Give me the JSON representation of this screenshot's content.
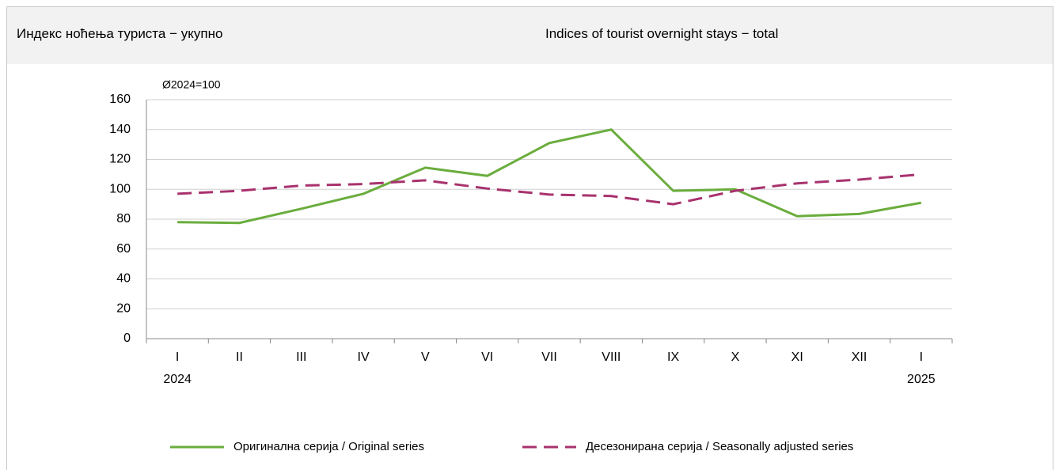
{
  "header": {
    "title_local": "Индекс ноћења туриста − укупно",
    "title_en": "Indices of tourist overnight stays − total"
  },
  "chart_data": {
    "type": "line",
    "y_unit_label": "Ø2024=100",
    "categories": [
      "I",
      "II",
      "III",
      "IV",
      "V",
      "VI",
      "VII",
      "VIII",
      "IX",
      "X",
      "XI",
      "XII",
      "I"
    ],
    "category_years": [
      "2024",
      null,
      null,
      null,
      null,
      null,
      null,
      null,
      null,
      null,
      null,
      null,
      "2025"
    ],
    "series": [
      {
        "name": "Оригинална серија / Original series",
        "color": "#6aad3d",
        "dashed": false,
        "values": [
          78,
          77.5,
          87,
          97,
          114.5,
          109,
          131,
          140,
          99,
          100,
          82,
          83.5,
          91
        ]
      },
      {
        "name": "Десезонирана серија / Seasonally adjusted series",
        "color": "#a8326e",
        "dashed": true,
        "values": [
          97,
          99,
          102.5,
          103.5,
          106,
          100.5,
          96.5,
          95.5,
          90,
          99,
          104,
          106.5,
          110
        ]
      }
    ],
    "ylim": [
      0,
      160
    ],
    "yticks": [
      0,
      20,
      40,
      60,
      80,
      100,
      120,
      140,
      160
    ],
    "grid": true,
    "legend": "bottom"
  }
}
